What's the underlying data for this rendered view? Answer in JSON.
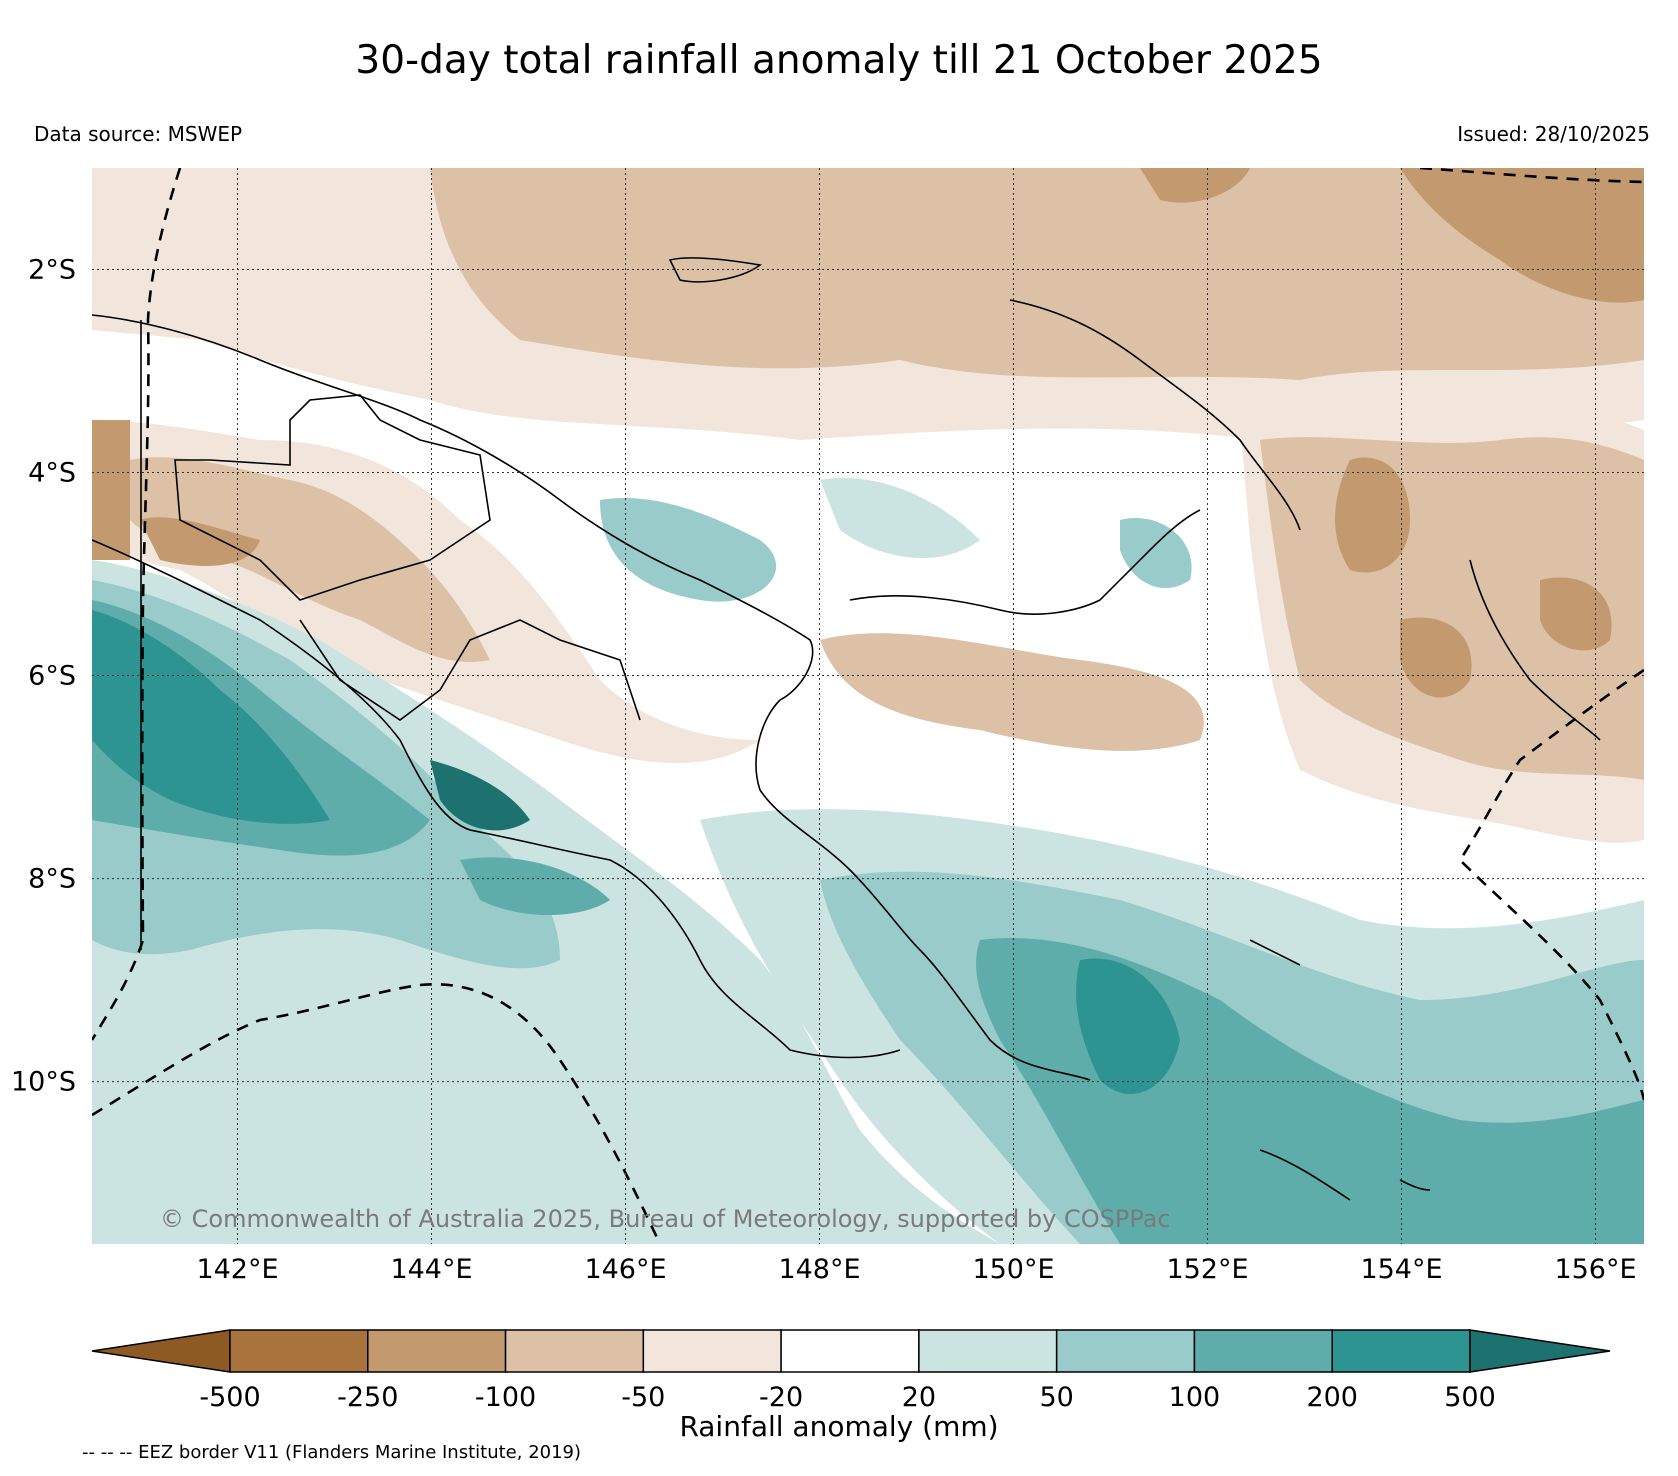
{
  "title": "30-day total rainfall anomaly till 21 October 2025",
  "data_source": "Data source: MSWEP",
  "issued": "Issued: 28/10/2025",
  "copyright": "© Commonwealth of Australia 2025, Bureau of Meteorology, supported by COSPPac",
  "map": {
    "lon_range": [
      140.5,
      156.5
    ],
    "lat_range": [
      -11.6,
      -1.0
    ],
    "lon_ticks": [
      142,
      144,
      146,
      148,
      150,
      152,
      154,
      156
    ],
    "lon_tick_labels": [
      "142°E",
      "144°E",
      "146°E",
      "148°E",
      "150°E",
      "152°E",
      "154°E",
      "156°E"
    ],
    "lat_ticks": [
      -2,
      -4,
      -6,
      -8,
      -10
    ],
    "lat_tick_labels": [
      "2°S",
      "4°S",
      "6°S",
      "8°S",
      "10°S"
    ],
    "grid": "dotted"
  },
  "colorbar": {
    "label": "Rainfall anomaly (mm)",
    "tick_labels": [
      "-500",
      "-250",
      "-100",
      "-50",
      "-20",
      "20",
      "50",
      "100",
      "200",
      "500"
    ],
    "colors": [
      "#8c5a22",
      "#a8733c",
      "#c39a70",
      "#dcc1a6",
      "#f2e6dc",
      "#ffffff",
      "#cbe4e2",
      "#98cbca",
      "#5fadab",
      "#2e9491",
      "#1d716f"
    ]
  },
  "eez_note": "-- -- -- EEZ border V11 (Flanders Marine Institute, 2019)"
}
